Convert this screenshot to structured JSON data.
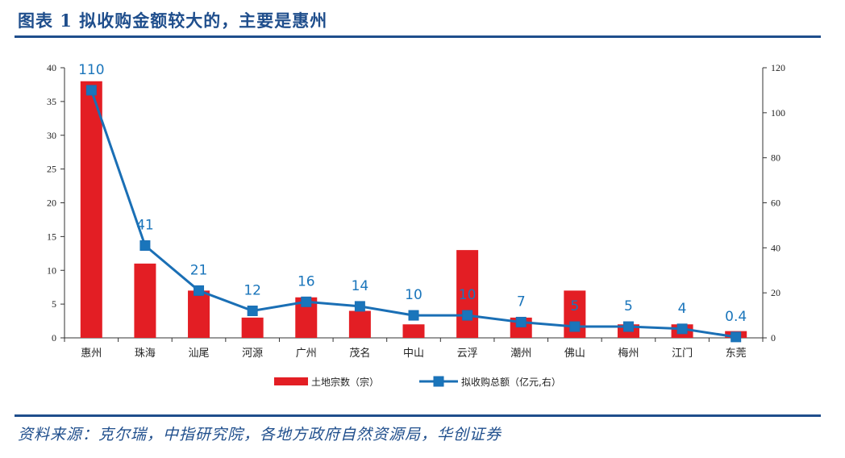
{
  "header": {
    "title": "图表 1   拟收购金额较大的，主要是惠州"
  },
  "footer": {
    "source": "资料来源：克尔瑞，中指研究院，各地方政府自然资源局，华创证券"
  },
  "chart_data": {
    "type": "bar",
    "categories": [
      "惠州",
      "珠海",
      "汕尾",
      "河源",
      "广州",
      "茂名",
      "中山",
      "云浮",
      "潮州",
      "佛山",
      "梅州",
      "江门",
      "东莞"
    ],
    "series": [
      {
        "name": "土地宗数（宗）",
        "type": "bar",
        "axis": "left",
        "color": "#e31e24",
        "values": [
          38,
          11,
          7,
          3,
          6,
          4,
          2,
          13,
          3,
          7,
          2,
          2,
          1
        ]
      },
      {
        "name": "拟收购总额（亿元,右）",
        "type": "line",
        "axis": "right",
        "color": "#1a6fb5",
        "values": [
          110,
          41,
          21,
          12,
          16,
          14,
          10,
          10,
          7,
          5,
          5,
          4,
          0.4
        ],
        "data_labels": [
          "110",
          "41",
          "21",
          "12",
          "16",
          "14",
          "10",
          "10",
          "7",
          "5",
          "5",
          "4",
          "0.4"
        ]
      }
    ],
    "y_left": {
      "min": 0,
      "max": 40,
      "ticks": [
        "0",
        "5",
        "10",
        "15",
        "20",
        "25",
        "30",
        "35",
        "40"
      ]
    },
    "y_right": {
      "min": 0,
      "max": 120,
      "ticks": [
        "0",
        "20",
        "40",
        "60",
        "80",
        "100",
        "120"
      ]
    },
    "grid": false,
    "legend": "bottom"
  }
}
